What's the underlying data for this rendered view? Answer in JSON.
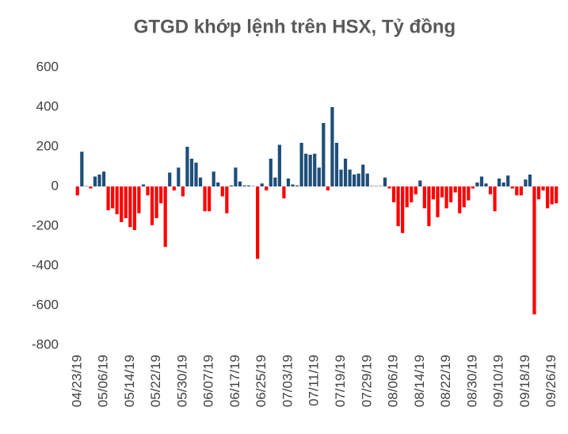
{
  "chart_data": {
    "type": "bar",
    "title": "GTGD khớp lệnh trên HSX, Tỷ đồng",
    "categories": [
      "04/23/19",
      null,
      null,
      null,
      null,
      null,
      "05/06/19",
      null,
      null,
      null,
      null,
      null,
      "05/14/19",
      null,
      null,
      null,
      null,
      null,
      "05/22/19",
      null,
      null,
      null,
      null,
      null,
      "05/30/19",
      null,
      null,
      null,
      null,
      null,
      "06/07/19",
      null,
      null,
      null,
      null,
      null,
      "06/17/19",
      null,
      null,
      null,
      null,
      null,
      "06/25/19",
      null,
      null,
      null,
      null,
      null,
      "07/03/19",
      null,
      null,
      null,
      null,
      null,
      "07/11/19",
      null,
      null,
      null,
      null,
      null,
      "07/19/19",
      null,
      null,
      null,
      null,
      null,
      "07/29/19",
      null,
      null,
      null,
      null,
      null,
      "08/06/19",
      null,
      null,
      null,
      null,
      null,
      "08/14/19",
      null,
      null,
      null,
      null,
      null,
      "08/22/19",
      null,
      null,
      null,
      null,
      null,
      "08/30/19",
      null,
      null,
      null,
      null,
      null,
      "09/10/19",
      null,
      null,
      null,
      null,
      null,
      "09/18/19",
      null,
      null,
      null,
      null,
      null,
      "09/26/19",
      null
    ],
    "values": [
      -45,
      175,
      2,
      -10,
      50,
      60,
      75,
      -120,
      -110,
      -140,
      -180,
      -160,
      -205,
      -220,
      -135,
      10,
      -45,
      -195,
      -160,
      -85,
      -305,
      70,
      -20,
      95,
      -50,
      200,
      140,
      120,
      45,
      -125,
      -125,
      75,
      20,
      -50,
      -135,
      5,
      95,
      25,
      5,
      5,
      2,
      -365,
      15,
      -20,
      140,
      45,
      210,
      -60,
      40,
      10,
      5,
      220,
      165,
      160,
      165,
      95,
      320,
      -20,
      400,
      220,
      85,
      140,
      85,
      60,
      65,
      110,
      65,
      2,
      2,
      2,
      45,
      -10,
      -80,
      -200,
      -235,
      -105,
      -80,
      -40,
      30,
      -110,
      -200,
      -65,
      -155,
      -55,
      -110,
      -80,
      -30,
      -135,
      -105,
      -70,
      -10,
      20,
      50,
      15,
      -40,
      -125,
      40,
      20,
      55,
      -10,
      -45,
      -45,
      35,
      60,
      -645,
      -65,
      -20,
      -110,
      -90,
      -85
    ],
    "positive_color": "#1f4e79",
    "negative_color": "#ff0000",
    "ylim": [
      -800,
      600
    ],
    "yticks": [
      -800,
      -600,
      -400,
      -200,
      0,
      200,
      400,
      600
    ],
    "grid": false
  }
}
